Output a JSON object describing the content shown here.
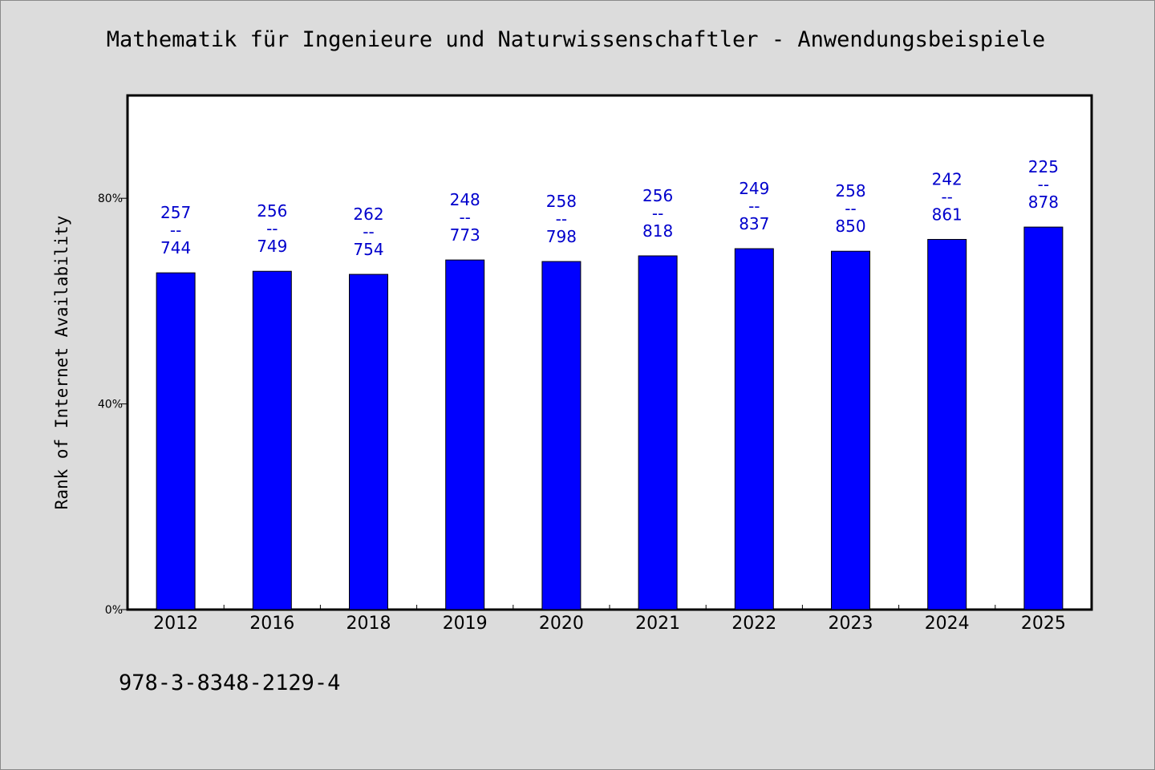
{
  "chart_data": {
    "type": "bar",
    "title": "Mathematik für Ingenieure und Naturwissenschaftler - Anwendungsbeispiele",
    "xlabel": "",
    "ylabel": "Rank of Internet Availability",
    "ylim": [
      0,
      100
    ],
    "yticks": [
      0,
      40,
      80
    ],
    "ytick_labels": [
      "0%",
      "40%",
      "80%"
    ],
    "categories": [
      "2012",
      "2016",
      "2018",
      "2019",
      "2020",
      "2021",
      "2022",
      "2023",
      "2024",
      "2025"
    ],
    "values": [
      65.5,
      65.8,
      65.2,
      68.0,
      67.7,
      68.8,
      70.2,
      69.7,
      72.0,
      74.4
    ],
    "data_labels": [
      [
        "257",
        "--",
        "744"
      ],
      [
        "256",
        "--",
        "749"
      ],
      [
        "262",
        "--",
        "754"
      ],
      [
        "248",
        "--",
        "773"
      ],
      [
        "258",
        "--",
        "798"
      ],
      [
        "256",
        "--",
        "818"
      ],
      [
        "249",
        "--",
        "837"
      ],
      [
        "258",
        "--",
        "850"
      ],
      [
        "242",
        "--",
        "861"
      ],
      [
        "225",
        "--",
        "878"
      ]
    ],
    "bar_color": "#0000ff",
    "label_color": "#0000cc",
    "plot_background": "#ffffff",
    "grid": false,
    "legend": "none"
  },
  "footer": {
    "isbn": "978-3-8348-2129-4"
  }
}
